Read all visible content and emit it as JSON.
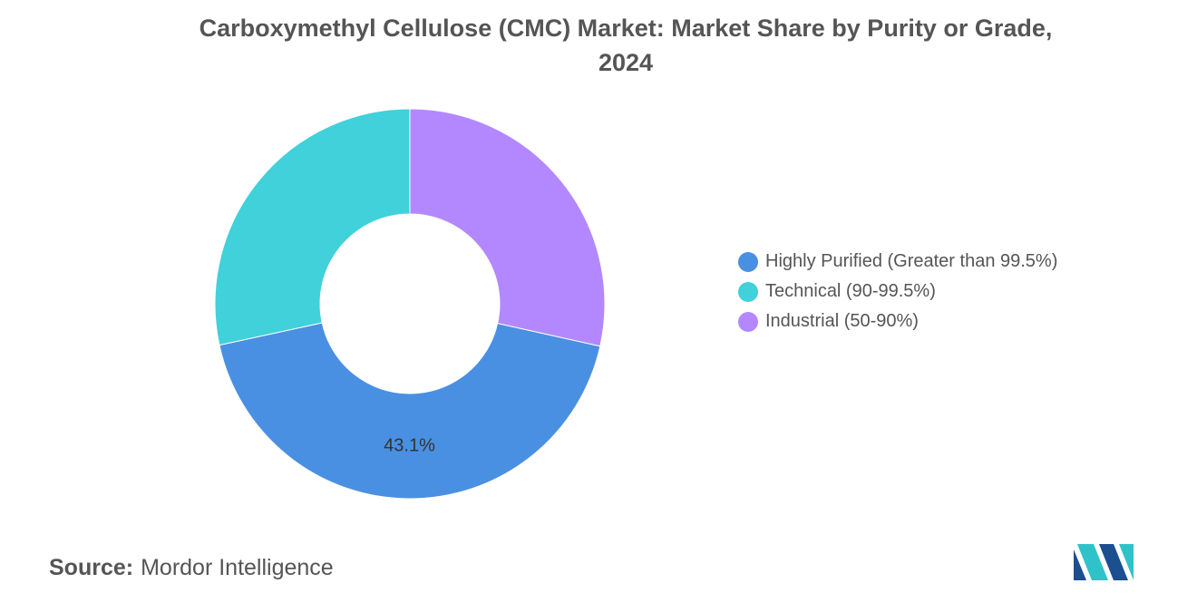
{
  "chart_data": {
    "type": "pie",
    "title": "Carboxymethyl Cellulose (CMC) Market: Market Share by Purity or Grade, 2024",
    "title_lines": [
      "Carboxymethyl Cellulose (CMC) Market: Market Share by Purity or Grade,",
      "2024"
    ],
    "donut": true,
    "categories": [
      "Highly Purified (Greater than 99.5%)",
      "Technical (90-99.5%)",
      "Industrial (50-90%)"
    ],
    "values": [
      43.1,
      28.4,
      28.5
    ],
    "colors": [
      "#4a90e2",
      "#40d1da",
      "#b388ff"
    ],
    "data_labels": [
      "43.1%",
      "",
      ""
    ],
    "start_angle_deg": 0,
    "direction": "clockwise, starting at 12 o'clock with the last category",
    "legend_position": "right"
  },
  "source": {
    "label": "Source:",
    "text": "Mordor Intelligence"
  },
  "logo": {
    "icon": "mordor-intelligence-logo-icon",
    "colors": [
      "#1b4f8f",
      "#2fc3c9"
    ]
  }
}
